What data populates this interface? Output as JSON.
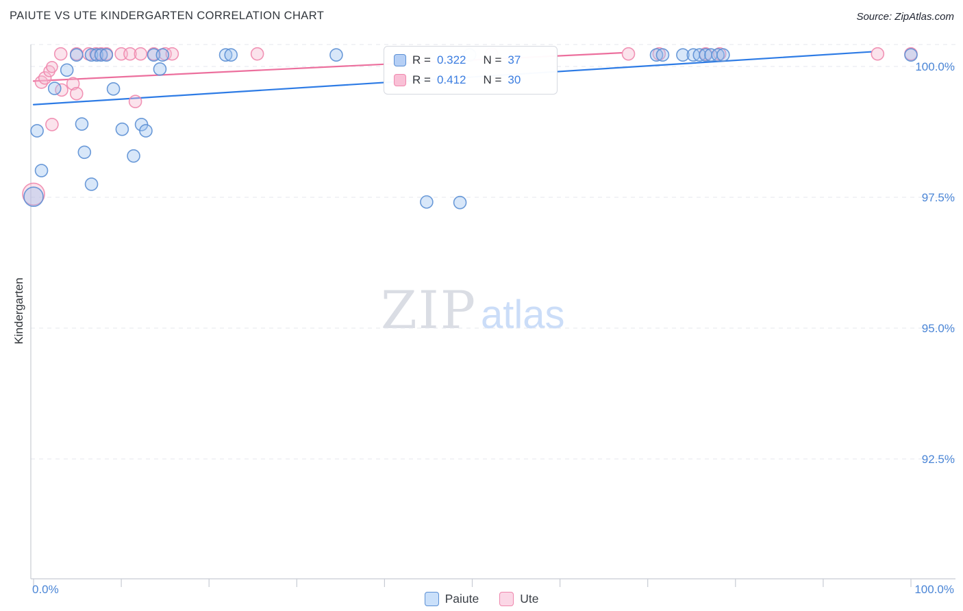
{
  "header": {
    "title": "PAIUTE VS UTE KINDERGARTEN CORRELATION CHART",
    "source": "Source: ZipAtlas.com"
  },
  "watermark": {
    "zip": "ZIP",
    "atlas": "atlas"
  },
  "axes": {
    "y_label": "Kindergarten",
    "y_ticks": [
      {
        "label": "100.0%",
        "value": 100.0
      },
      {
        "label": "97.5%",
        "value": 97.5
      },
      {
        "label": "95.0%",
        "value": 95.0
      },
      {
        "label": "92.5%",
        "value": 92.5
      }
    ],
    "x_left_label": "0.0%",
    "x_right_label": "100.0%"
  },
  "legend_box": {
    "entries": [
      {
        "series": "Paiute",
        "r_label": "R =",
        "r_value": "0.322",
        "n_label": "N =",
        "n_value": "37"
      },
      {
        "series": "Ute",
        "r_label": "R =",
        "r_value": "0.412",
        "n_label": "N =",
        "n_value": "30"
      }
    ]
  },
  "bottom_legend": {
    "items": [
      {
        "label": "Paiute",
        "color": "#5b8fd4"
      },
      {
        "label": "Ute",
        "color": "#ef87ad"
      }
    ]
  },
  "chart_data": {
    "type": "scatter",
    "title": "PAIUTE VS UTE KINDERGARTEN CORRELATION CHART",
    "xlabel": "",
    "ylabel": "Kindergarten",
    "x_range": [
      0,
      100
    ],
    "y_range": [
      90.2,
      100.42
    ],
    "grid": true,
    "legend_position": "bottom-center",
    "series": [
      {
        "name": "Ute",
        "R": 0.412,
        "N": 30,
        "stroke": "#ef87ad",
        "fill": "#f6b8d0",
        "trend_color": "#ec6f9d",
        "trend": {
          "x1": 0,
          "y1": 99.72,
          "x2": 67.0,
          "y2": 100.26
        },
        "points": [
          [
            3.1,
            100.24,
            9
          ],
          [
            4.9,
            100.24,
            9
          ],
          [
            6.3,
            100.24,
            9
          ],
          [
            7.1,
            100.24,
            9
          ],
          [
            7.7,
            100.24,
            9
          ],
          [
            8.3,
            100.24,
            9
          ],
          [
            10.0,
            100.24,
            9
          ],
          [
            11.0,
            100.24,
            9
          ],
          [
            12.2,
            100.24,
            9
          ],
          [
            13.7,
            100.24,
            9
          ],
          [
            15.0,
            100.24,
            9
          ],
          [
            15.8,
            100.24,
            9
          ],
          [
            25.5,
            100.24,
            9
          ],
          [
            52.2,
            100.24,
            9
          ],
          [
            67.8,
            100.24,
            9
          ],
          [
            71.3,
            100.24,
            9
          ],
          [
            76.6,
            100.24,
            9
          ],
          [
            78.2,
            100.24,
            9
          ],
          [
            96.2,
            100.24,
            9
          ],
          [
            100.0,
            100.24,
            9
          ],
          [
            0.9,
            99.7,
            9
          ],
          [
            1.3,
            99.78,
            9
          ],
          [
            1.8,
            99.91,
            8
          ],
          [
            2.1,
            99.99,
            8
          ],
          [
            3.2,
            99.55,
            9
          ],
          [
            4.5,
            99.67,
            9
          ],
          [
            4.9,
            99.48,
            9
          ],
          [
            2.1,
            98.89,
            9
          ],
          [
            11.6,
            99.33,
            9
          ],
          [
            0.0,
            97.56,
            16
          ]
        ]
      },
      {
        "name": "Paiute",
        "R": 0.322,
        "N": 37,
        "stroke": "#5b8fd4",
        "fill": "#9ec3ef",
        "trend_color": "#2d7be5",
        "trend": {
          "x1": 0,
          "y1": 99.27,
          "x2": 95.5,
          "y2": 100.28
        },
        "points": [
          [
            0.4,
            98.77,
            9
          ],
          [
            0.9,
            98.01,
            9
          ],
          [
            0.0,
            97.51,
            14
          ],
          [
            2.4,
            99.58,
            9
          ],
          [
            3.8,
            99.93,
            9
          ],
          [
            5.5,
            98.9,
            9
          ],
          [
            5.8,
            98.36,
            9
          ],
          [
            6.6,
            97.75,
            9
          ],
          [
            9.1,
            99.57,
            9
          ],
          [
            10.1,
            98.8,
            9
          ],
          [
            11.4,
            98.29,
            9
          ],
          [
            12.3,
            98.89,
            9
          ],
          [
            12.8,
            98.77,
            9
          ],
          [
            4.9,
            100.22,
            9
          ],
          [
            6.6,
            100.22,
            9
          ],
          [
            7.2,
            100.22,
            9
          ],
          [
            7.7,
            100.22,
            9
          ],
          [
            8.3,
            100.22,
            9
          ],
          [
            13.7,
            100.22,
            9
          ],
          [
            14.7,
            100.22,
            9
          ],
          [
            14.4,
            99.95,
            9
          ],
          [
            21.9,
            100.22,
            9
          ],
          [
            22.5,
            100.22,
            9
          ],
          [
            34.5,
            100.22,
            9
          ],
          [
            44.8,
            97.41,
            9
          ],
          [
            48.6,
            97.4,
            9
          ],
          [
            49.7,
            100.22,
            9
          ],
          [
            71.0,
            100.22,
            9
          ],
          [
            71.7,
            100.22,
            9
          ],
          [
            74.0,
            100.22,
            9
          ],
          [
            75.2,
            100.22,
            9
          ],
          [
            75.9,
            100.22,
            9
          ],
          [
            76.6,
            100.22,
            9
          ],
          [
            77.2,
            100.22,
            9
          ],
          [
            78.0,
            100.22,
            9
          ],
          [
            78.6,
            100.22,
            9
          ],
          [
            100.0,
            100.22,
            9
          ]
        ]
      }
    ]
  }
}
